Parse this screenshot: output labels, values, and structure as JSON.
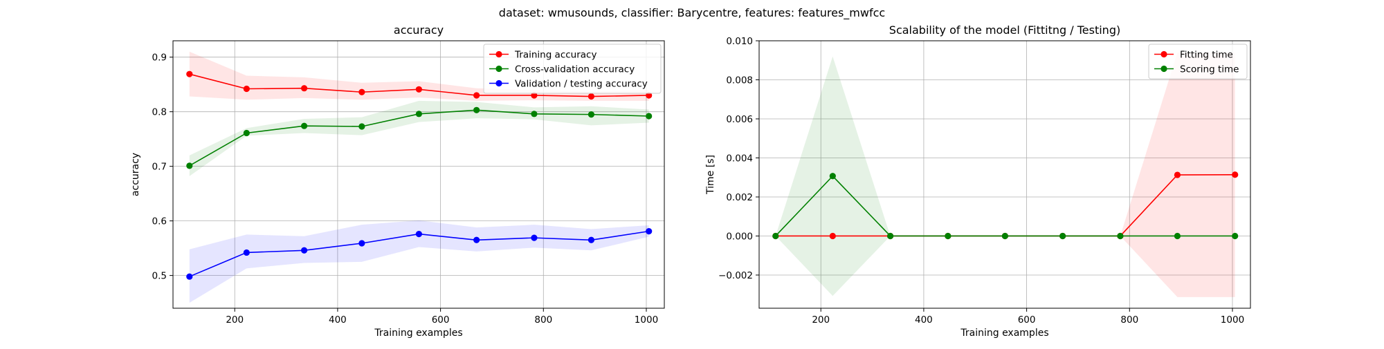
{
  "figure": {
    "suptitle": "dataset: wmusounds, classifier: Barycentre, features: features_mwfcc"
  },
  "chart_data": [
    {
      "type": "line",
      "title": "accuracy",
      "xlabel": "Training examples",
      "ylabel": "accuracy",
      "xlim": [
        80,
        1035
      ],
      "ylim": [
        0.44,
        0.93
      ],
      "xticks": [
        200,
        400,
        600,
        800,
        1000
      ],
      "yticks": [
        0.5,
        0.6,
        0.7,
        0.8,
        0.9
      ],
      "ytick_labels": [
        "0.5",
        "0.6",
        "0.7",
        "0.8",
        "0.9"
      ],
      "grid": true,
      "legend_position": "top-right",
      "x": [
        112,
        223,
        335,
        447,
        558,
        670,
        782,
        893,
        1005
      ],
      "series": [
        {
          "name": "Training accuracy",
          "color": "#ff0000",
          "values": [
            0.869,
            0.842,
            0.843,
            0.836,
            0.841,
            0.83,
            0.83,
            0.828,
            0.83
          ],
          "lower": [
            0.828,
            0.822,
            0.825,
            0.822,
            0.826,
            0.82,
            0.821,
            0.82,
            0.82
          ],
          "upper": [
            0.91,
            0.866,
            0.863,
            0.853,
            0.856,
            0.843,
            0.84,
            0.837,
            0.84
          ]
        },
        {
          "name": "Cross-validation accuracy",
          "color": "#008000",
          "values": [
            0.701,
            0.761,
            0.774,
            0.773,
            0.796,
            0.803,
            0.796,
            0.795,
            0.792
          ],
          "lower": [
            0.682,
            0.756,
            0.761,
            0.757,
            0.781,
            0.788,
            0.786,
            0.775,
            0.78
          ],
          "upper": [
            0.72,
            0.77,
            0.787,
            0.79,
            0.82,
            0.818,
            0.808,
            0.81,
            0.804
          ]
        },
        {
          "name": "Validation / testing accuracy",
          "color": "#0000ff",
          "values": [
            0.498,
            0.542,
            0.546,
            0.559,
            0.576,
            0.565,
            0.569,
            0.565,
            0.581
          ],
          "lower": [
            0.45,
            0.513,
            0.523,
            0.525,
            0.552,
            0.544,
            0.551,
            0.546,
            0.571
          ],
          "upper": [
            0.548,
            0.575,
            0.572,
            0.593,
            0.601,
            0.588,
            0.593,
            0.585,
            0.592
          ]
        }
      ]
    },
    {
      "type": "line",
      "title": "Scalability of the model (Fittitng / Testing)",
      "xlabel": "Training examples",
      "ylabel": "Time [s]",
      "xlim": [
        80,
        1035
      ],
      "ylim": [
        -0.0037,
        0.01
      ],
      "xticks": [
        200,
        400,
        600,
        800,
        1000
      ],
      "yticks": [
        -0.002,
        0.0,
        0.002,
        0.004,
        0.006,
        0.008,
        0.01
      ],
      "ytick_labels": [
        "−0.002",
        "0.000",
        "0.002",
        "0.004",
        "0.006",
        "0.008",
        "0.010"
      ],
      "grid": true,
      "legend_position": "top-right",
      "x": [
        112,
        223,
        335,
        447,
        558,
        670,
        782,
        893,
        1005
      ],
      "series": [
        {
          "name": "Fitting time",
          "color": "#ff0000",
          "values": [
            0,
            0,
            0,
            0,
            0,
            0,
            0,
            0.00313,
            0.00314
          ],
          "lower": [
            0,
            0,
            0,
            0,
            0,
            0,
            0,
            -0.00313,
            -0.00313
          ],
          "upper": [
            0,
            0,
            0,
            0,
            0,
            0,
            0,
            0.0094,
            0.0094
          ]
        },
        {
          "name": "Scoring time",
          "color": "#008000",
          "values": [
            0,
            0.00307,
            0,
            0,
            0,
            0,
            0,
            0,
            0
          ],
          "lower": [
            0,
            -0.00307,
            0,
            0,
            0,
            0,
            0,
            0,
            0
          ],
          "upper": [
            0,
            0.0092,
            0,
            0,
            0,
            0,
            0,
            0,
            0
          ]
        }
      ]
    }
  ]
}
